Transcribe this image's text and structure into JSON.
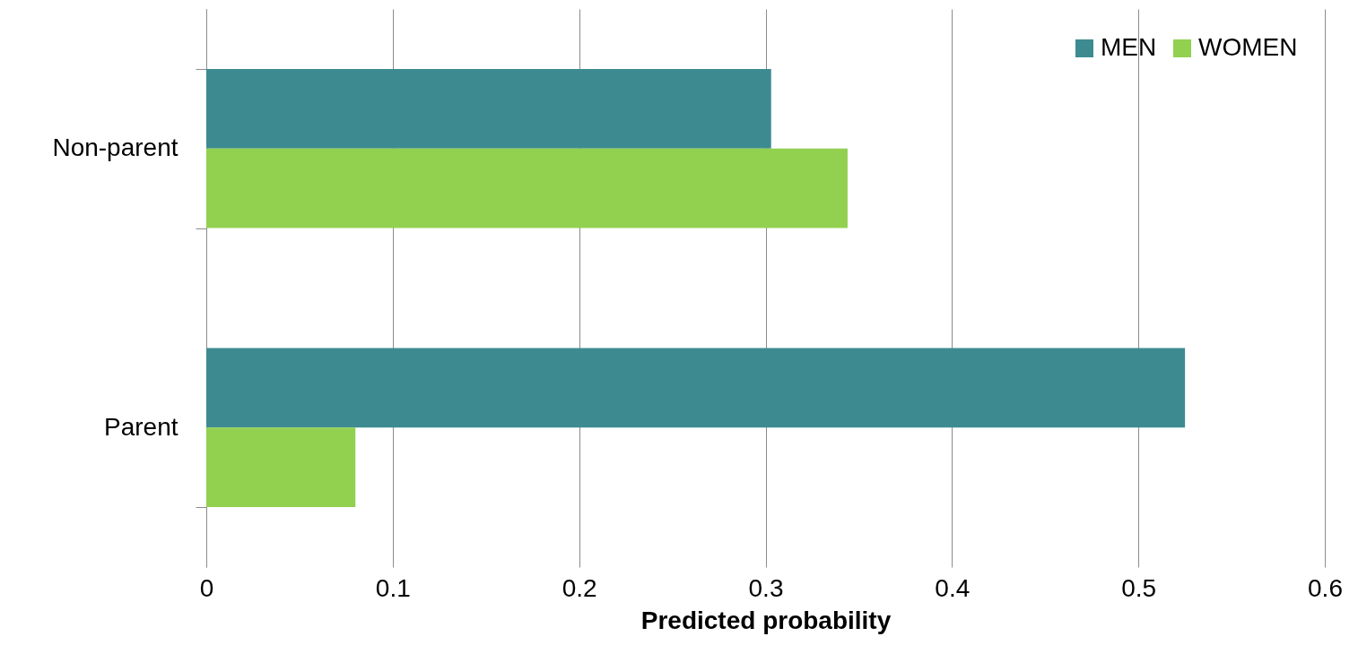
{
  "chart_data": {
    "type": "bar",
    "orientation": "horizontal",
    "xlabel": "Predicted probability",
    "categories": [
      "Non-parent",
      "Parent"
    ],
    "series": [
      {
        "name": "MEN",
        "color": "#3d8b91",
        "values": [
          0.303,
          0.525
        ]
      },
      {
        "name": "WOMEN",
        "color": "#92d050",
        "values": [
          0.344,
          0.08
        ]
      }
    ],
    "xlim": [
      0,
      0.6
    ],
    "xticks": [
      0,
      0.1,
      0.2,
      0.3,
      0.4,
      0.5,
      0.6
    ],
    "grid": "x",
    "legend": "top right"
  }
}
